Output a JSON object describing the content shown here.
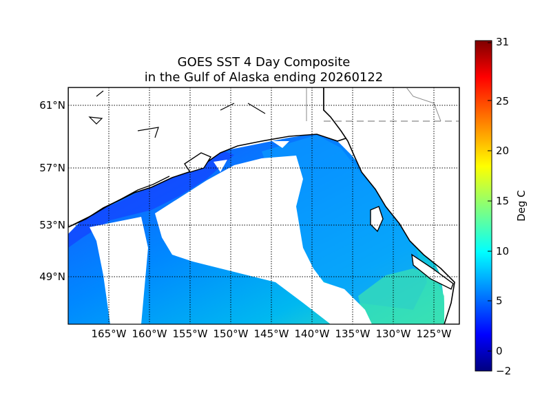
{
  "figure": {
    "title_line1": "GOES SST 4 Day Composite",
    "title_line2": "in the Gulf of Alaska ending 20260122"
  },
  "map": {
    "lat_labels": [
      "61°N",
      "57°N",
      "53°N",
      "49°N"
    ],
    "lon_labels": [
      "165°W",
      "160°W",
      "155°W",
      "150°W",
      "145°W",
      "140°W",
      "135°W",
      "130°W",
      "125°W"
    ],
    "grid": "dotted",
    "data_color_nearshore_north": "#1a3cff",
    "data_color_open_ocean": "#00a8ff",
    "data_color_southeast": "#33e0b8",
    "no_data_color": "#ffffff",
    "land_color": "#ffffff",
    "coastline_color": "#000000"
  },
  "colorbar": {
    "label": "Deg C",
    "tick_labels": [
      "31",
      "25",
      "20",
      "15",
      "10",
      "5",
      "0",
      "−2"
    ],
    "min": -2,
    "max": 31,
    "colormap": "jet"
  }
}
